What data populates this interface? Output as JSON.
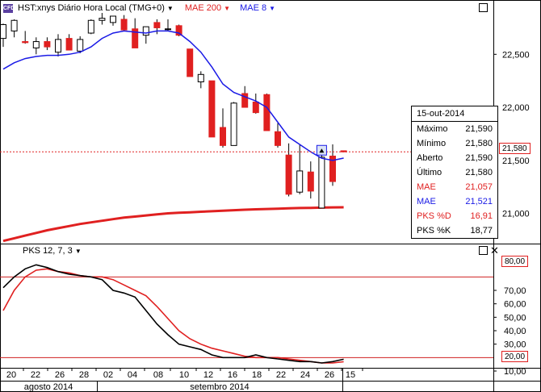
{
  "header": {
    "symbol_icon": "CFD",
    "symbol": "HST:xnys Diário Hora Local (TMG+0)",
    "ind1": "MAE 200",
    "ind2": "MAE 8",
    "ind1_color": "#e02020",
    "ind2_color": "#1a1ae6"
  },
  "tooltip": {
    "date": "15-out-2014",
    "rows": [
      {
        "label": "Máximo",
        "value": "21,590",
        "color": "#000000"
      },
      {
        "label": "Mínimo",
        "value": "21,580",
        "color": "#000000"
      },
      {
        "label": "Aberto",
        "value": "21,590",
        "color": "#000000"
      },
      {
        "label": "Último",
        "value": "21,580",
        "color": "#000000"
      },
      {
        "label": "MAE",
        "value": "21,057",
        "color": "#e02020"
      },
      {
        "label": "MAE",
        "value": "21,521",
        "color": "#1a1ae6"
      },
      {
        "label": "PKS %D",
        "value": "16,91",
        "color": "#e02020"
      },
      {
        "label": "PKS %K",
        "value": "18,77",
        "color": "#000000"
      }
    ]
  },
  "price_axis": {
    "ticks": [
      "22,500",
      "22,000",
      "21,500",
      "21,000"
    ],
    "current": "21,580"
  },
  "pks": {
    "label": "PKS 12, 7, 3",
    "ticks": [
      "70,00",
      "60,00",
      "50,00",
      "40,00",
      "30,00",
      "10,00"
    ],
    "upper_level": "80,00",
    "lower_level": "20,00"
  },
  "x_axis": {
    "days": [
      "20",
      "22",
      "26",
      "28",
      "02",
      "04",
      "08",
      "10",
      "12",
      "16",
      "18",
      "22",
      "24",
      "26",
      "15"
    ],
    "months": [
      "agosto 2014",
      "setembro 2014"
    ]
  },
  "chart_data": [
    {
      "type": "candlestick",
      "title": "HST:xnys Diário Hora Local (TMG+0)",
      "ylim": [
        20730,
        22860
      ],
      "candles": [
        {
          "o": 22650,
          "h": 22790,
          "l": 22570,
          "c": 22780
        },
        {
          "o": 22720,
          "h": 22830,
          "l": 22660,
          "c": 22820
        },
        {
          "o": 22620,
          "h": 22720,
          "l": 22600,
          "c": 22610
        },
        {
          "o": 22560,
          "h": 22660,
          "l": 22500,
          "c": 22620
        },
        {
          "o": 22620,
          "h": 22660,
          "l": 22540,
          "c": 22570
        },
        {
          "o": 22520,
          "h": 22690,
          "l": 22480,
          "c": 22640
        },
        {
          "o": 22650,
          "h": 22690,
          "l": 22540,
          "c": 22540
        },
        {
          "o": 22530,
          "h": 22670,
          "l": 22510,
          "c": 22640
        },
        {
          "o": 22700,
          "h": 22830,
          "l": 22690,
          "c": 22820
        },
        {
          "o": 22820,
          "h": 22890,
          "l": 22780,
          "c": 22840
        },
        {
          "o": 22800,
          "h": 22860,
          "l": 22770,
          "c": 22860
        },
        {
          "o": 22830,
          "h": 22870,
          "l": 22720,
          "c": 22730
        },
        {
          "o": 22740,
          "h": 22840,
          "l": 22560,
          "c": 22560
        },
        {
          "o": 22680,
          "h": 22760,
          "l": 22600,
          "c": 22760
        },
        {
          "o": 22800,
          "h": 22830,
          "l": 22690,
          "c": 22750
        },
        {
          "o": 22740,
          "h": 22830,
          "l": 22720,
          "c": 22740
        },
        {
          "o": 22770,
          "h": 22780,
          "l": 22670,
          "c": 22680
        },
        {
          "o": 22550,
          "h": 22550,
          "l": 22290,
          "c": 22290
        },
        {
          "o": 22240,
          "h": 22340,
          "l": 22180,
          "c": 22310
        },
        {
          "o": 22250,
          "h": 22250,
          "l": 21720,
          "c": 21720
        },
        {
          "o": 21810,
          "h": 21990,
          "l": 21620,
          "c": 21640
        },
        {
          "o": 21640,
          "h": 22050,
          "l": 21640,
          "c": 22040
        },
        {
          "o": 22130,
          "h": 22200,
          "l": 22000,
          "c": 22000
        },
        {
          "o": 22050,
          "h": 22130,
          "l": 21940,
          "c": 21950
        },
        {
          "o": 22120,
          "h": 22130,
          "l": 21780,
          "c": 21780
        },
        {
          "o": 21770,
          "h": 21850,
          "l": 21620,
          "c": 21640
        },
        {
          "o": 21550,
          "h": 21660,
          "l": 21160,
          "c": 21180
        },
        {
          "o": 21200,
          "h": 21650,
          "l": 21180,
          "c": 21400
        },
        {
          "o": 21390,
          "h": 21490,
          "l": 21140,
          "c": 21210
        },
        {
          "o": 21050,
          "h": 21620,
          "l": 21050,
          "c": 21530
        },
        {
          "o": 21540,
          "h": 21650,
          "l": 21260,
          "c": 21300
        },
        {
          "o": 21590,
          "h": 21590,
          "l": 21580,
          "c": 21580
        }
      ],
      "series": [
        {
          "name": "MAE 8",
          "values": [
            22360,
            22420,
            22460,
            22480,
            22490,
            22490,
            22500,
            22520,
            22570,
            22650,
            22700,
            22720,
            22710,
            22700,
            22720,
            22720,
            22700,
            22620,
            22520,
            22380,
            22220,
            22140,
            22100,
            22060,
            22000,
            21860,
            21720,
            21650,
            21580,
            21520,
            21500,
            21521
          ]
        },
        {
          "name": "MAE 200",
          "values": [
            20740,
            20765,
            20790,
            20815,
            20840,
            20860,
            20880,
            20900,
            20915,
            20930,
            20945,
            20960,
            20970,
            20980,
            20990,
            21000,
            21005,
            21010,
            21015,
            21020,
            21025,
            21030,
            21034,
            21038,
            21041,
            21044,
            21047,
            21050,
            21052,
            21054,
            21056,
            21057
          ]
        }
      ]
    },
    {
      "type": "line",
      "title": "PKS 12, 7, 3",
      "ylim": [
        13,
        100
      ],
      "reference_lines": [
        80,
        20
      ],
      "series": [
        {
          "name": "PKS %K",
          "values": [
            72,
            80,
            86,
            89,
            87,
            84,
            82,
            81,
            80,
            78,
            70,
            68,
            65,
            55,
            45,
            37,
            30,
            28,
            26,
            22,
            20,
            20,
            20,
            22,
            20,
            19,
            18,
            17,
            17,
            16,
            17,
            18.77
          ]
        },
        {
          "name": "PKS %D",
          "values": [
            55,
            70,
            80,
            85,
            86,
            84,
            83,
            81,
            80,
            80,
            78,
            74,
            70,
            66,
            58,
            49,
            40,
            34,
            30,
            27,
            25,
            23,
            21,
            20,
            20,
            20,
            19,
            18,
            17,
            16,
            16,
            16.91
          ]
        }
      ]
    }
  ]
}
